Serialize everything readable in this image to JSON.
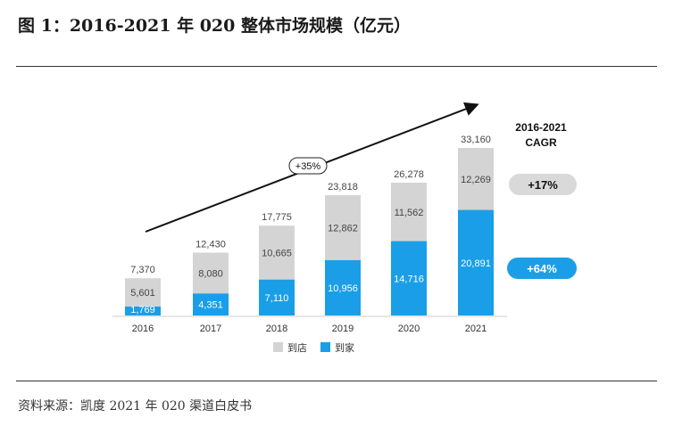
{
  "title": "图 1：2016-2021 年 020 整体市场规模（亿元）",
  "source": "资料来源：凯度 2021 年 020 渠道白皮书",
  "colors": {
    "store": "#d4d4d4",
    "home": "#1a9ee8",
    "trend_badge_border": "#222",
    "cagr_pill_store": "#d9d9d9",
    "cagr_pill_home": "#1a9ee8"
  },
  "chart_data": {
    "type": "bar",
    "stacked": true,
    "categories": [
      "2016",
      "2017",
      "2018",
      "2019",
      "2020",
      "2021"
    ],
    "series": [
      {
        "name": "到家",
        "values": [
          1769,
          4351,
          7110,
          10956,
          14716,
          20891
        ]
      },
      {
        "name": "到店",
        "values": [
          5601,
          8080,
          10665,
          12862,
          11562,
          12269
        ]
      }
    ],
    "segment_labels": {
      "home": [
        "1,769",
        "4,351",
        "7,110",
        "10,956",
        "14,716",
        "20,891"
      ],
      "store": [
        "5,601",
        "8,080",
        "10,665",
        "12,862",
        "11,562",
        "12,269"
      ]
    },
    "totals": [
      "7,370",
      "12,430",
      "17,775",
      "23,818",
      "26,278",
      "33,160"
    ],
    "total_values": [
      7370,
      12430,
      17775,
      23818,
      26278,
      33160
    ],
    "trend_label": "+35%",
    "cagr_title_line1": "2016-2021",
    "cagr_title_line2": "CAGR",
    "cagr_store": "+17%",
    "cagr_home": "+64%",
    "legend": [
      "到店",
      "到家"
    ],
    "legend_placement": "bottom",
    "ylim": [
      0,
      35000
    ],
    "grid": false
  }
}
